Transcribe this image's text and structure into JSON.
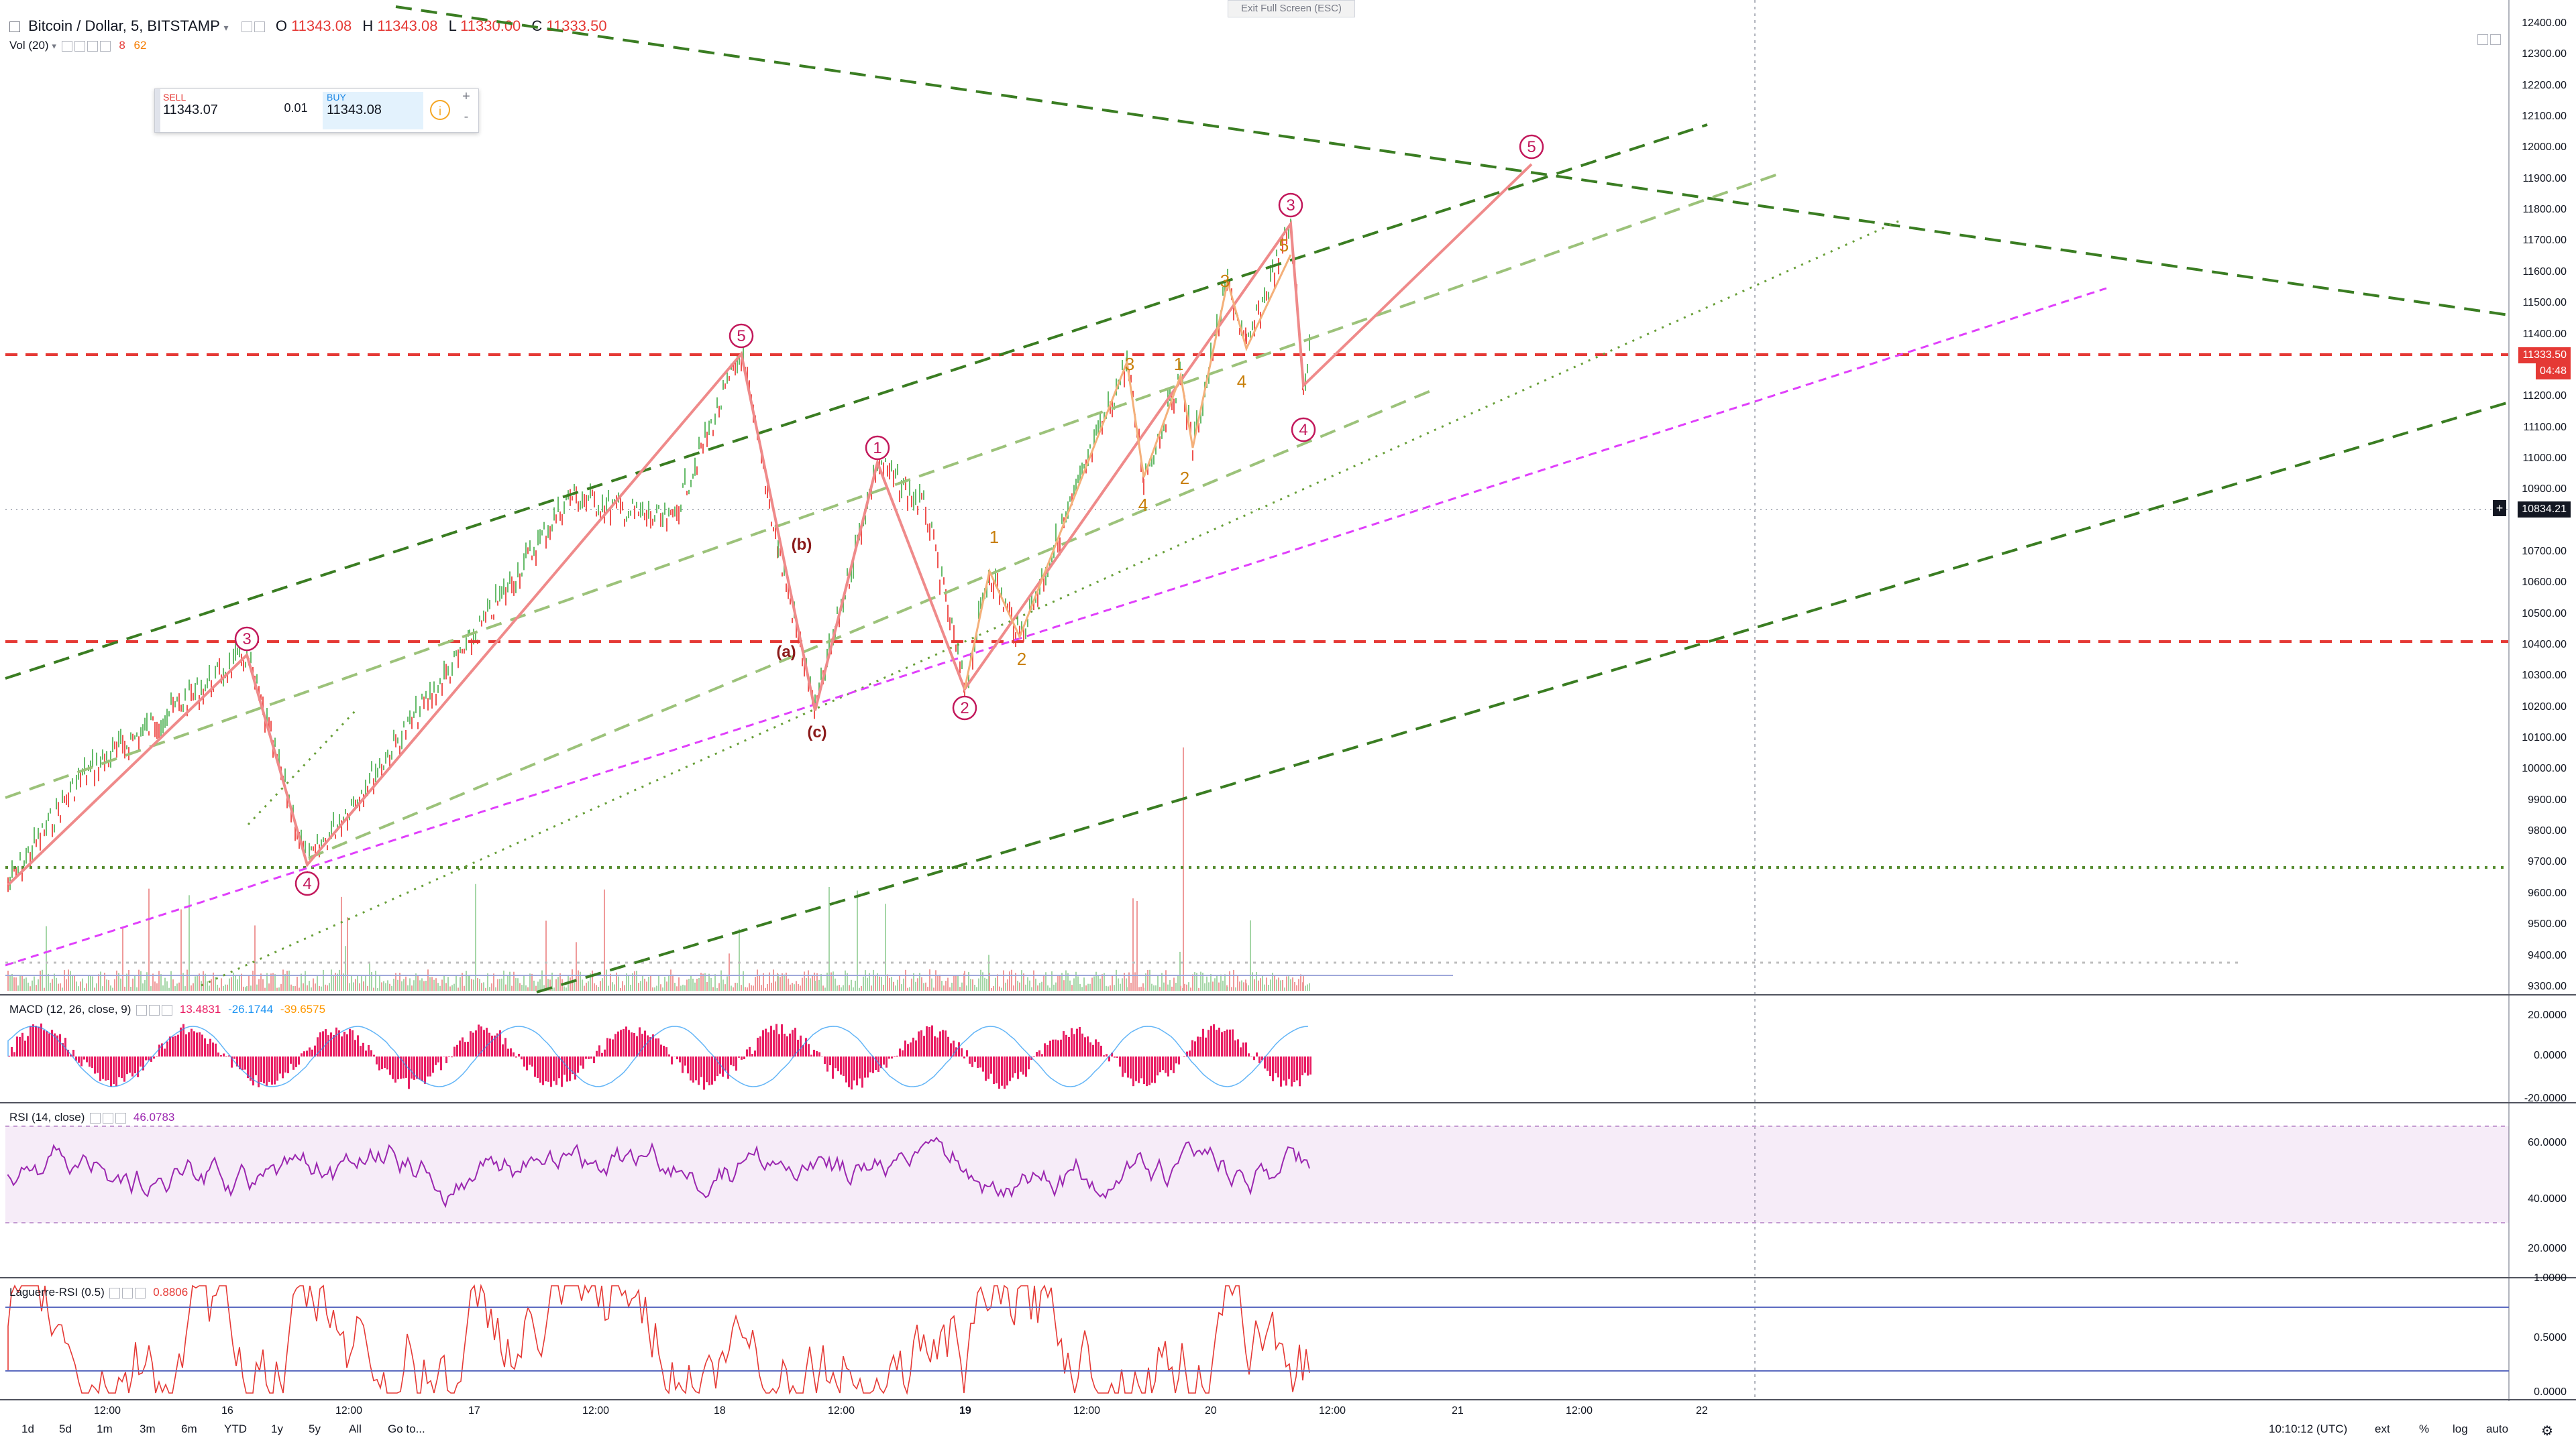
{
  "header": {
    "symbol": "Bitcoin / Dollar, 5, BITSTAMP",
    "o_label": "O",
    "o_value": "11343.08",
    "h_label": "H",
    "h_value": "11343.08",
    "l_label": "L",
    "l_value": "11330.00",
    "c_label": "C",
    "c_value": "11333.50",
    "vol_label": "Vol (20)",
    "vol_value1": "8",
    "vol_value2": "62"
  },
  "exit_fullscreen": "Exit Full Screen (ESC)",
  "trade_panel": {
    "sell_label": "SELL",
    "sell_price": "11343.07",
    "spread": "0.01",
    "buy_label": "BUY",
    "buy_price": "11343.08",
    "plus": "+",
    "minus": "-"
  },
  "price_axis": {
    "labels": [
      "12400.00",
      "12300.00",
      "12200.00",
      "12100.00",
      "12000.00",
      "11900.00",
      "11800.00",
      "11700.00",
      "11600.00",
      "11500.00",
      "11400.00",
      "11200.00",
      "11100.00",
      "11000.00",
      "10900.00",
      "10700.00",
      "10600.00",
      "10500.00",
      "10400.00",
      "10300.00",
      "10200.00",
      "10100.00",
      "10000.00",
      "9900.00",
      "9800.00",
      "9700.00",
      "9600.00",
      "9500.00",
      "9400.00",
      "9300.00"
    ],
    "current_price": "11333.50",
    "countdown": "04:48",
    "crosshair_price": "10834.21",
    "plus": "+"
  },
  "macd": {
    "label": "MACD (12, 26, close, 9)",
    "v1": "13.4831",
    "v2": "-26.1744",
    "v3": "-39.6575",
    "axis": [
      "20.0000",
      "0.0000",
      "-20.0000"
    ]
  },
  "rsi": {
    "label": "RSI (14, close)",
    "value": "46.0783",
    "axis": [
      "60.0000",
      "40.0000",
      "20.0000"
    ]
  },
  "laguerre": {
    "label": "Laguerre-RSI (0.5)",
    "value": "0.8806",
    "axis": [
      "1.0000",
      "0.5000",
      "0.0000"
    ]
  },
  "time_axis": [
    "12:00",
    "16",
    "12:00",
    "17",
    "12:00",
    "18",
    "12:00",
    "19",
    "12:00",
    "20",
    "12:00",
    "21",
    "12:00",
    "22"
  ],
  "waves": {
    "red": [
      "3",
      "4",
      "5",
      "1",
      "2",
      "3",
      "4",
      "5"
    ],
    "corr": [
      "(a)",
      "(b)",
      "(c)"
    ],
    "orange": [
      "1",
      "2",
      "3",
      "4",
      "1",
      "2",
      "3",
      "4",
      "5"
    ]
  },
  "bottom_bar": {
    "timeframes": [
      "1d",
      "5d",
      "1m",
      "3m",
      "6m",
      "YTD",
      "1y",
      "5y",
      "All"
    ],
    "goto": "Go to...",
    "clock": "10:10:12 (UTC)",
    "ext": "ext",
    "pct": "%",
    "log": "log",
    "auto": "auto"
  },
  "colors": {
    "wave_red": "#c2185b",
    "wave_orange": "#c87f0a",
    "channel_dark": "#3a7d22",
    "channel_light": "#9cc27a",
    "support_red": "#e53935",
    "magenta": "#e040fb",
    "macd_hist": "#e91e63",
    "rsi": "#9c27b0",
    "laguerre": "#e53935"
  }
}
